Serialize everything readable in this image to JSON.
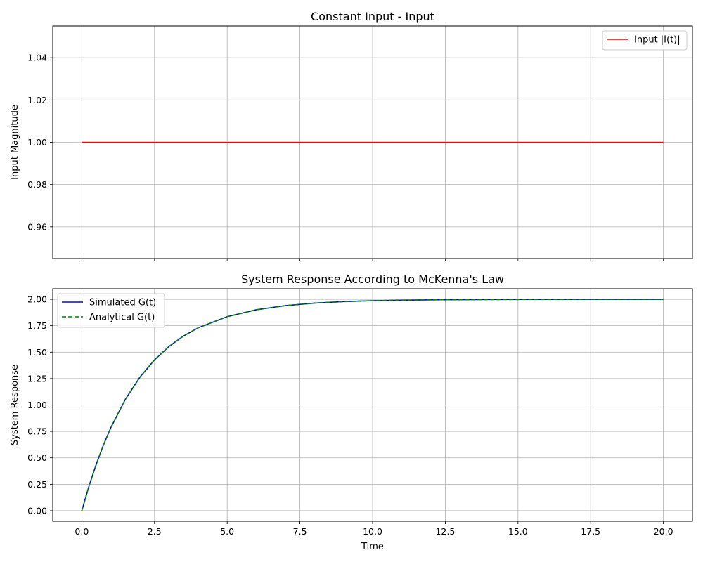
{
  "chart_data": [
    {
      "type": "line",
      "title": "Constant Input - Input",
      "xlabel": "",
      "ylabel": "Input Magnitude",
      "xlim": [
        -1.0,
        21.0
      ],
      "ylim": [
        0.945,
        1.055
      ],
      "x_ticks": [
        0.0,
        2.5,
        5.0,
        7.5,
        10.0,
        12.5,
        15.0,
        17.5,
        20.0
      ],
      "x_tick_labels_visible": false,
      "y_ticks": [
        0.96,
        0.98,
        1.0,
        1.02,
        1.04
      ],
      "y_tick_labels": [
        "0.96",
        "0.98",
        "1.00",
        "1.02",
        "1.04"
      ],
      "grid": true,
      "legend_position": "upper right",
      "series": [
        {
          "name": "Input |I(t)|",
          "color": "#ff0000",
          "style": "solid",
          "x": [
            0,
            20
          ],
          "y": [
            1.0,
            1.0
          ]
        }
      ]
    },
    {
      "type": "line",
      "title": "System Response According to McKenna's Law",
      "xlabel": "Time",
      "ylabel": "System Response",
      "xlim": [
        -1.0,
        21.0
      ],
      "ylim": [
        -0.1,
        2.1
      ],
      "x_ticks": [
        0.0,
        2.5,
        5.0,
        7.5,
        10.0,
        12.5,
        15.0,
        17.5,
        20.0
      ],
      "x_tick_labels": [
        "0.0",
        "2.5",
        "5.0",
        "7.5",
        "10.0",
        "12.5",
        "15.0",
        "17.5",
        "20.0"
      ],
      "y_ticks": [
        0.0,
        0.25,
        0.5,
        0.75,
        1.0,
        1.25,
        1.5,
        1.75,
        2.0
      ],
      "y_tick_labels": [
        "0.00",
        "0.25",
        "0.50",
        "0.75",
        "1.00",
        "1.25",
        "1.50",
        "1.75",
        "2.00"
      ],
      "grid": true,
      "legend_position": "upper left",
      "series": [
        {
          "name": "Simulated G(t)",
          "color": "#0000ff",
          "style": "solid",
          "x": [
            0,
            0.25,
            0.5,
            0.75,
            1,
            1.5,
            2,
            2.5,
            3,
            3.5,
            4,
            5,
            6,
            7,
            8,
            9,
            10,
            12,
            14,
            16,
            18,
            20
          ],
          "y": [
            0.0,
            0.235,
            0.442,
            0.626,
            0.787,
            1.055,
            1.264,
            1.427,
            1.554,
            1.653,
            1.73,
            1.836,
            1.901,
            1.94,
            1.964,
            1.978,
            1.987,
            1.995,
            1.998,
            1.999,
            2.0,
            2.0
          ]
        },
        {
          "name": "Analytical G(t)",
          "color": "#008000",
          "style": "dashed",
          "x": [
            0,
            0.25,
            0.5,
            0.75,
            1,
            1.5,
            2,
            2.5,
            3,
            3.5,
            4,
            5,
            6,
            7,
            8,
            9,
            10,
            12,
            14,
            16,
            18,
            20
          ],
          "y": [
            0.0,
            0.235,
            0.442,
            0.626,
            0.787,
            1.055,
            1.264,
            1.427,
            1.554,
            1.653,
            1.73,
            1.836,
            1.901,
            1.94,
            1.964,
            1.978,
            1.987,
            1.995,
            1.998,
            1.999,
            2.0,
            2.0
          ]
        }
      ]
    }
  ]
}
